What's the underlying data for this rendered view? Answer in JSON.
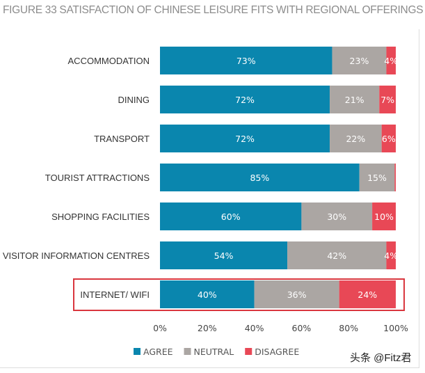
{
  "chart_data": {
    "type": "bar",
    "orientation": "horizontal",
    "stacked": true,
    "title": "FIGURE 33 SATISFACTION OF CHINESE LEISURE FITS WITH REGIONAL OFFERINGS",
    "categories": [
      "ACCOMMODATION",
      "DINING",
      "TRANSPORT",
      "TOURIST ATTRACTIONS",
      "SHOPPING FACILITIES",
      "VISITOR INFORMATION CENTRES",
      "INTERNET/ WIFI"
    ],
    "series": [
      {
        "name": "AGREE",
        "color": "#0a86ae",
        "values": [
          73,
          72,
          72,
          85,
          60,
          54,
          40
        ],
        "labels": [
          "73%",
          "72%",
          "72%",
          "85%",
          "60%",
          "54%",
          "40%"
        ]
      },
      {
        "name": "NEUTRAL",
        "color": "#aba6a3",
        "values": [
          23,
          21,
          22,
          15,
          30,
          42,
          36
        ],
        "labels": [
          "23%",
          "21%",
          "22%",
          "15%",
          "30%",
          "42%",
          "36%"
        ]
      },
      {
        "name": "DISAGREE",
        "color": "#e84856",
        "values": [
          4,
          7,
          6,
          0.5,
          10,
          4,
          24
        ],
        "labels": [
          "4%",
          "7%",
          "6%",
          "",
          "10%",
          "4%",
          "24%"
        ]
      }
    ],
    "xlim": [
      0,
      100
    ],
    "xticks": [
      "0%",
      "20%",
      "40%",
      "60%",
      "80%",
      "100%"
    ],
    "highlighted_category": "INTERNET/ WIFI",
    "highlight_color": "#d9363e",
    "legend": "bottom",
    "grid": false
  },
  "watermark": "头条 @Fitz君"
}
